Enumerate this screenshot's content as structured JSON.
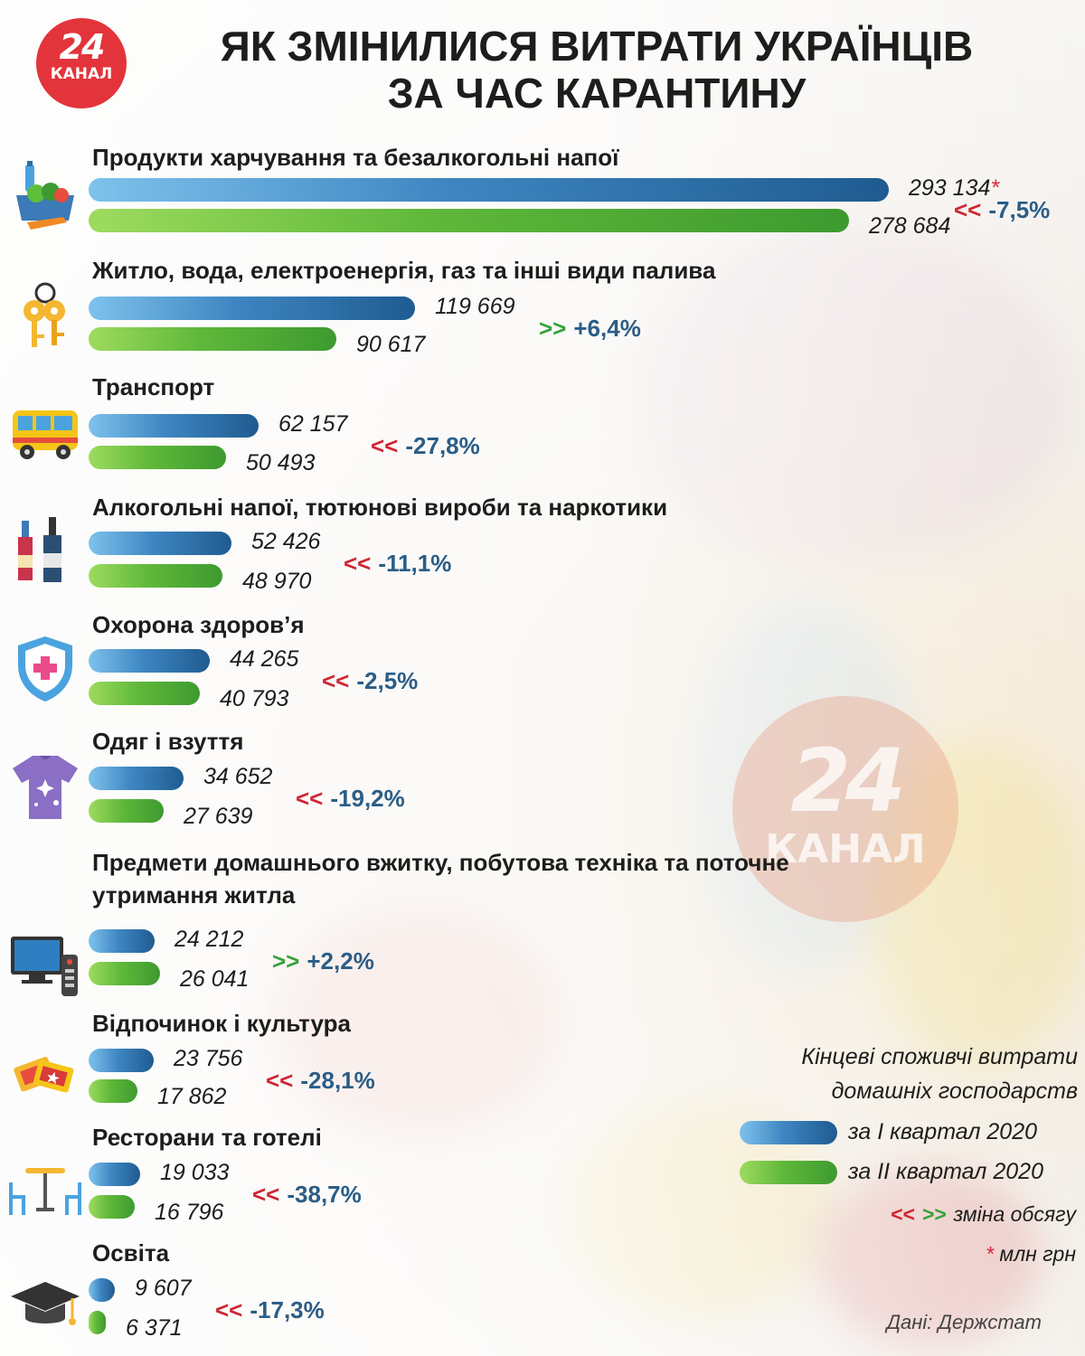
{
  "logo": {
    "number": "24",
    "word": "КАНАЛ"
  },
  "title_lines": [
    "ЯК ЗМІНИЛИСЯ ВИТРАТИ УКРАЇНЦІВ",
    "ЗА ЧАС КАРАНТИНУ"
  ],
  "chart_data": {
    "type": "bar",
    "orientation": "horizontal",
    "title": "ЯК ЗМІНИЛИСЯ ВИТРАТИ УКРАЇНЦІВ ЗА ЧАС КАРАНТИНУ",
    "unit": "млн грн",
    "categories": [
      "Продукти харчування та безалкогольні напої",
      "Житло, вода, електроенергія, газ та інші види палива",
      "Транспорт",
      "Алкогольні напої, тютюнові вироби та наркотики",
      "Охорона здоров’я",
      "Одяг і взуття",
      "Предмети домашнього вжитку, побутова техніка та поточне утримання житла",
      "Відпочинок і культура",
      "Ресторани та готелі",
      "Освіта"
    ],
    "series": [
      {
        "name": "за I квартал 2020",
        "color": "#3e86c2",
        "values": [
          293134,
          119669,
          62157,
          52426,
          44265,
          34652,
          24212,
          23756,
          19033,
          9607
        ],
        "labels": [
          "293 134",
          "119 669",
          "62 157",
          "52 426",
          "44 265",
          "34 652",
          "24 212",
          "23 756",
          "19 033",
          "9 607"
        ]
      },
      {
        "name": "за II квартал 2020",
        "color": "#5fb83a",
        "values": [
          278684,
          90617,
          50493,
          48970,
          40793,
          27639,
          26041,
          17862,
          16796,
          6371
        ],
        "labels": [
          "278 684",
          "90 617",
          "50 493",
          "48 970",
          "40 793",
          "27 639",
          "26 041",
          "17 862",
          "16 796",
          "6 371"
        ]
      }
    ],
    "changes": [
      {
        "dir": "down",
        "arrow": "<<",
        "text": "-7,5%"
      },
      {
        "dir": "up",
        "arrow": ">>",
        "text": "+6,4%"
      },
      {
        "dir": "down",
        "arrow": "<<",
        "text": "-27,8%"
      },
      {
        "dir": "down",
        "arrow": "<<",
        "text": "-11,1%"
      },
      {
        "dir": "down",
        "arrow": "<<",
        "text": "-2,5%"
      },
      {
        "dir": "down",
        "arrow": "<<",
        "text": "-19,2%"
      },
      {
        "dir": "up",
        "arrow": ">>",
        "text": "+2,2%"
      },
      {
        "dir": "down",
        "arrow": "<<",
        "text": "-28,1%"
      },
      {
        "dir": "down",
        "arrow": "<<",
        "text": "-38,7%"
      },
      {
        "dir": "down",
        "arrow": "<<",
        "text": "-17,3%"
      }
    ],
    "icons": [
      "groceries-icon",
      "keys-icon",
      "bus-icon",
      "bottles-icon",
      "health-shield-icon",
      "tshirt-icon",
      "tv-remote-icon",
      "tickets-icon",
      "cafe-table-icon",
      "graduation-cap-icon"
    ]
  },
  "legend": {
    "caption_line1": "Кінцеві споживчі витрати",
    "caption_line2": "домашніх господарств",
    "q1_label": "за I квартал 2020",
    "q2_label": "за II квартал 2020",
    "change_down": "<<",
    "change_up": ">>",
    "change_label": "зміна обсягу",
    "asterisk": "*",
    "unit_label": "млн грн"
  },
  "source": "Дані: Держстат",
  "watermark": {
    "number": "24",
    "word": "КАНАЛ"
  }
}
